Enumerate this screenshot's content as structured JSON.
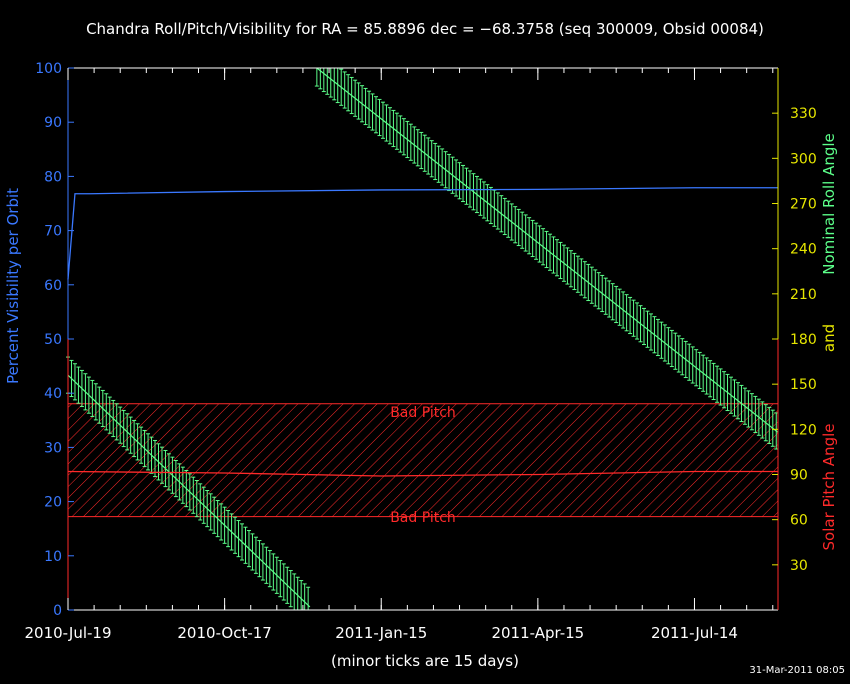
{
  "title": "Chandra Roll/Pitch/Visibility for RA = 85.8896 dec = −68.3758 (seq 300009, Obsid 00084)",
  "footer_note": "(minor ticks are 15 days)",
  "timestamp": "31-Mar-2011 08:05",
  "colors": {
    "background": "#000000",
    "axis": "#ffffff",
    "visibility": "#3a78ff",
    "roll": "#5cff8a",
    "pitch": "#ff2a2a",
    "right_ticks": "#e6e600"
  },
  "chart_data": {
    "type": "line",
    "x_axis": {
      "tick_labels": [
        "2010-Jul-19",
        "2010-Oct-17",
        "2011-Jan-15",
        "2011-Apr-15",
        "2011-Jul-14"
      ],
      "minor_tick_days": 15,
      "range": [
        "2010-Jul-19",
        "2011-Aug-31"
      ]
    },
    "left_axis": {
      "label": "Percent Visibility per Orbit",
      "range": [
        0,
        100
      ],
      "ticks": [
        0,
        10,
        20,
        30,
        40,
        50,
        60,
        70,
        80,
        90,
        100
      ]
    },
    "right_axis": {
      "label_roll": "Nominal Roll Angle",
      "label_and": "and",
      "label_pitch": "Solar Pitch Angle",
      "range": [
        0,
        360
      ],
      "ticks": [
        30,
        60,
        90,
        120,
        150,
        180,
        210,
        240,
        270,
        300,
        330
      ]
    },
    "bad_pitch": {
      "label_top": "Bad Pitch",
      "label_bottom": "Bad Pitch",
      "range": [
        62,
        137
      ]
    },
    "series": [
      {
        "key": "visibility",
        "axis": "left",
        "x": [
          "2010-Jul-19",
          "2010-Jul-23",
          "2010-Aug-01",
          "2010-Oct-17",
          "2011-Jan-15",
          "2011-Apr-15",
          "2011-Jul-14",
          "2011-Aug-31"
        ],
        "y": [
          61,
          76.8,
          76.8,
          77.2,
          77.5,
          77.6,
          77.9,
          77.9
        ]
      },
      {
        "key": "roll",
        "axis": "right",
        "band": 12,
        "segments": [
          {
            "x": [
              "2010-Jul-19",
              "2010-Dec-05"
            ],
            "y": [
              156,
              2
            ]
          },
          {
            "x": [
              "2010-Dec-09",
              "2011-Aug-31"
            ],
            "y": [
              360,
              118
            ]
          }
        ]
      },
      {
        "key": "pitch",
        "axis": "right",
        "x": [
          "2010-Jul-19",
          "2010-Oct-17",
          "2011-Jan-15",
          "2011-Apr-15",
          "2011-Jul-14",
          "2011-Aug-31"
        ],
        "y": [
          92,
          91,
          89,
          90,
          92,
          92
        ]
      }
    ]
  }
}
